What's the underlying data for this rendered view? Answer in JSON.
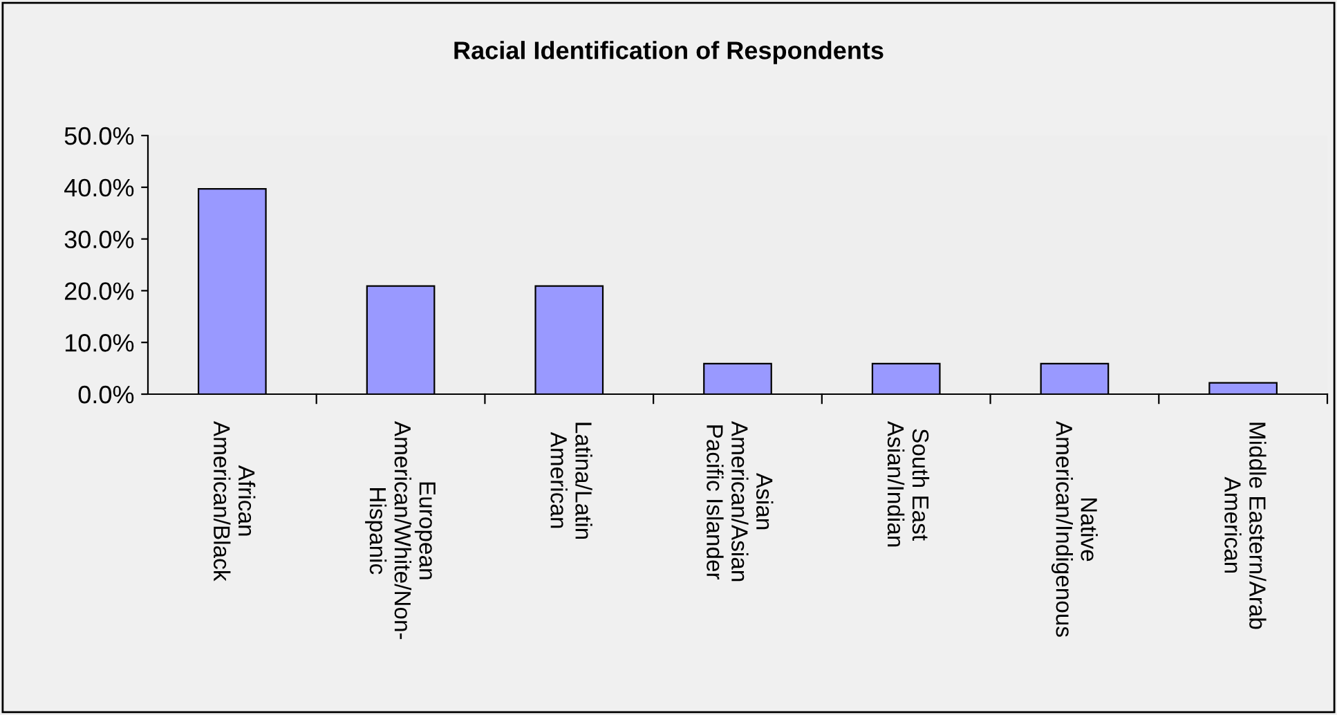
{
  "chart_data": {
    "type": "bar",
    "title": "Racial Identification of Respondents",
    "categories": [
      "African\nAmerican/Black",
      "European\nAmerican/White/Non-\nHispanic",
      "Latina/Latin\nAmerican",
      "Asian\nAmerican/Asian\nPacific Islander",
      "South East\nAsian/Indian",
      "Native\nAmerican/Indigenous",
      "Middle Eastern/Arab\nAmerican"
    ],
    "values": [
      39.7,
      20.9,
      20.9,
      5.9,
      5.9,
      5.9,
      2.2
    ],
    "color": "#9999ff",
    "ylim": [
      0,
      50
    ],
    "yticks": [
      {
        "value": 0,
        "label": "0.0%"
      },
      {
        "value": 10,
        "label": "10.0%"
      },
      {
        "value": 20,
        "label": "20.0%"
      },
      {
        "value": 30,
        "label": "30.0%"
      },
      {
        "value": 40,
        "label": "40.0%"
      },
      {
        "value": 50,
        "label": "50.0%"
      }
    ],
    "grid": false
  }
}
